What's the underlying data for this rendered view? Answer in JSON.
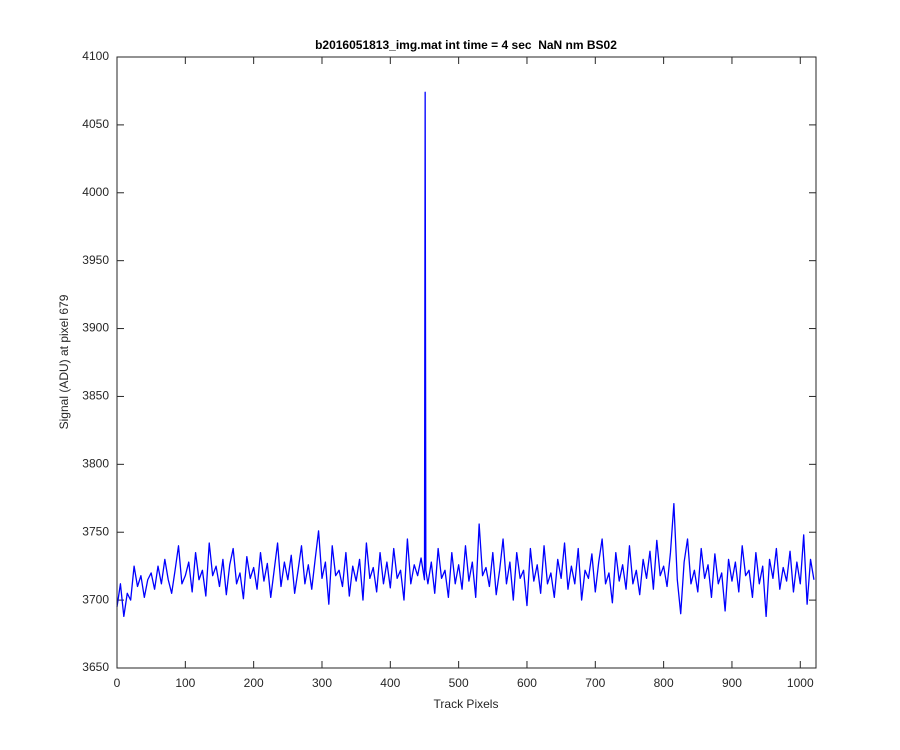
{
  "chart_data": {
    "type": "line",
    "title": "b2016051813_img.mat int time = 4 sec  NaN nm BS02",
    "x_label": "Track Pixels",
    "y_label": "Signal (ADU) at pixel 679",
    "color": "#0000ff",
    "xlim": [
      0,
      1023
    ],
    "ylim": [
      3650,
      4100
    ],
    "xticks": [
      0,
      100,
      200,
      300,
      400,
      500,
      600,
      700,
      800,
      900,
      1000
    ],
    "yticks": [
      3650,
      3700,
      3750,
      3800,
      3850,
      3900,
      3950,
      4000,
      4050,
      4100
    ],
    "x": [
      0,
      5,
      10,
      15,
      20,
      25,
      30,
      35,
      40,
      45,
      50,
      55,
      60,
      65,
      70,
      75,
      80,
      85,
      90,
      95,
      100,
      105,
      110,
      115,
      120,
      125,
      130,
      135,
      140,
      145,
      150,
      155,
      160,
      165,
      170,
      175,
      180,
      185,
      190,
      195,
      200,
      205,
      210,
      215,
      220,
      225,
      230,
      235,
      240,
      245,
      250,
      255,
      260,
      265,
      270,
      275,
      280,
      285,
      290,
      295,
      300,
      305,
      310,
      315,
      320,
      325,
      330,
      335,
      340,
      345,
      350,
      355,
      360,
      365,
      370,
      375,
      380,
      385,
      390,
      395,
      400,
      405,
      410,
      415,
      420,
      425,
      430,
      435,
      440,
      445,
      450,
      451,
      452,
      455,
      460,
      465,
      470,
      475,
      480,
      485,
      490,
      495,
      500,
      505,
      510,
      515,
      520,
      525,
      530,
      535,
      540,
      545,
      550,
      555,
      560,
      565,
      570,
      575,
      580,
      585,
      590,
      595,
      600,
      605,
      610,
      615,
      620,
      625,
      630,
      635,
      640,
      645,
      650,
      655,
      660,
      665,
      670,
      675,
      680,
      685,
      690,
      695,
      700,
      705,
      710,
      715,
      720,
      725,
      730,
      735,
      740,
      745,
      750,
      755,
      760,
      765,
      770,
      775,
      780,
      785,
      790,
      795,
      800,
      805,
      810,
      815,
      820,
      825,
      830,
      835,
      840,
      845,
      850,
      855,
      860,
      865,
      870,
      875,
      880,
      885,
      890,
      895,
      900,
      905,
      910,
      915,
      920,
      925,
      930,
      935,
      940,
      945,
      950,
      955,
      960,
      965,
      970,
      975,
      980,
      985,
      990,
      995,
      1000,
      1005,
      1010,
      1015,
      1020
    ],
    "values": [
      3695,
      3712,
      3688,
      3705,
      3700,
      3725,
      3710,
      3718,
      3702,
      3715,
      3720,
      3708,
      3725,
      3712,
      3730,
      3715,
      3705,
      3722,
      3740,
      3712,
      3718,
      3728,
      3706,
      3735,
      3715,
      3722,
      3703,
      3742,
      3718,
      3725,
      3710,
      3730,
      3704,
      3726,
      3738,
      3712,
      3720,
      3701,
      3732,
      3716,
      3724,
      3708,
      3735,
      3714,
      3727,
      3702,
      3722,
      3742,
      3710,
      3728,
      3715,
      3733,
      3705,
      3722,
      3740,
      3712,
      3726,
      3708,
      3730,
      3751,
      3716,
      3728,
      3697,
      3740,
      3718,
      3722,
      3710,
      3735,
      3703,
      3725,
      3714,
      3730,
      3700,
      3742,
      3716,
      3724,
      3706,
      3735,
      3712,
      3728,
      3709,
      3738,
      3716,
      3722,
      3700,
      3745,
      3712,
      3726,
      3718,
      3731,
      3715,
      4074,
      3722,
      3712,
      3728,
      3705,
      3738,
      3716,
      3722,
      3702,
      3735,
      3712,
      3726,
      3708,
      3740,
      3714,
      3728,
      3702,
      3756,
      3718,
      3724,
      3710,
      3735,
      3704,
      3722,
      3745,
      3712,
      3728,
      3700,
      3735,
      3716,
      3722,
      3696,
      3738,
      3714,
      3726,
      3705,
      3740,
      3712,
      3720,
      3702,
      3730,
      3716,
      3742,
      3708,
      3725,
      3712,
      3738,
      3700,
      3722,
      3716,
      3734,
      3706,
      3728,
      3745,
      3712,
      3720,
      3698,
      3735,
      3714,
      3726,
      3708,
      3740,
      3712,
      3722,
      3704,
      3730,
      3716,
      3736,
      3708,
      3744,
      3718,
      3725,
      3710,
      3735,
      3771,
      3715,
      3690,
      3728,
      3745,
      3712,
      3722,
      3706,
      3738,
      3716,
      3726,
      3702,
      3734,
      3712,
      3720,
      3692,
      3730,
      3714,
      3728,
      3706,
      3740,
      3718,
      3722,
      3702,
      3735,
      3712,
      3725,
      3688,
      3730,
      3716,
      3738,
      3708,
      3724,
      3714,
      3736,
      3706,
      3728,
      3712,
      3748,
      3697,
      3730,
      3715
    ]
  }
}
